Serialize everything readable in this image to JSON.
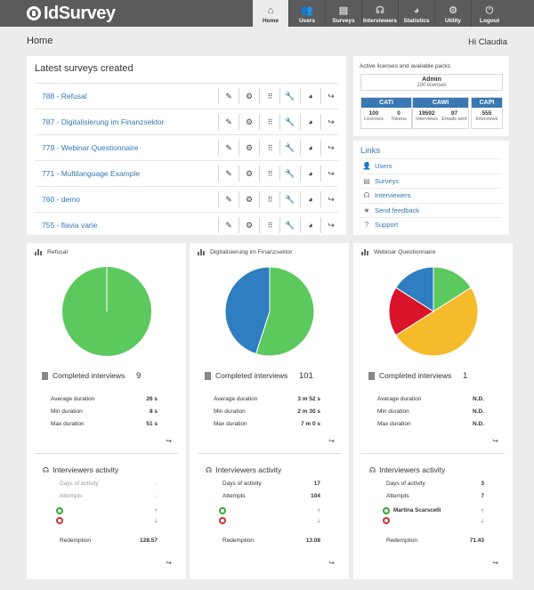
{
  "brand": {
    "name": "IdSurvey"
  },
  "nav": [
    {
      "label": "Home",
      "icon": "home-icon",
      "glyph": "⌂"
    },
    {
      "label": "Users",
      "icon": "users-icon",
      "glyph": "👥"
    },
    {
      "label": "Surveys",
      "icon": "surveys-icon",
      "glyph": "▤"
    },
    {
      "label": "Interviewers",
      "icon": "headset-icon",
      "glyph": "☊"
    },
    {
      "label": "Statistics",
      "icon": "pie-chart-icon",
      "glyph": "◕"
    },
    {
      "label": "Utility",
      "icon": "gear-icon",
      "glyph": "⚙"
    },
    {
      "label": "Logout",
      "icon": "power-icon",
      "glyph": "⏻"
    }
  ],
  "page": {
    "title": "Home",
    "greeting": "Hi Claudia"
  },
  "latest": {
    "title": "Latest surveys created",
    "surveys": [
      "788 - Refusal",
      "787 - Digitalisierung im Finanzsektor",
      "779 - Webinar Questionnaire",
      "771 - Multilanguage Example",
      "760 - demo",
      "755 - flavia varie"
    ],
    "actions": [
      {
        "name": "edit-icon",
        "glyph": "✎"
      },
      {
        "name": "settings-doc-icon",
        "glyph": "⚙"
      },
      {
        "name": "grid-icon",
        "glyph": "⠿"
      },
      {
        "name": "wrench-icon",
        "glyph": "🔧"
      },
      {
        "name": "pie-chart-icon",
        "glyph": "◕"
      },
      {
        "name": "share-icon",
        "glyph": "↪"
      }
    ]
  },
  "licenses": {
    "title": "Active licenses and available packs",
    "admin": {
      "name": "Admin",
      "sub": "100 licenses"
    },
    "boxes": [
      {
        "head": "CATI",
        "cells": [
          {
            "num": "100",
            "label": "Licenses"
          },
          {
            "num": "0",
            "label": "Tokens"
          }
        ]
      },
      {
        "head": "CAWI",
        "cells": [
          {
            "num": "19592",
            "label": "Interviews"
          },
          {
            "num": "97",
            "label": "Emails sent"
          }
        ]
      },
      {
        "head": "CAPI",
        "cells": [
          {
            "num": "555",
            "label": "Interviews"
          }
        ]
      }
    ]
  },
  "links": {
    "title": "Links",
    "items": [
      {
        "label": "Users",
        "icon": "users-icon",
        "glyph": "👤"
      },
      {
        "label": "Surveys",
        "icon": "document-icon",
        "glyph": "▤"
      },
      {
        "label": "Interviewers",
        "icon": "headset-icon",
        "glyph": "☊"
      },
      {
        "label": "Send feedback",
        "icon": "star-icon",
        "glyph": "★"
      },
      {
        "label": "Support",
        "icon": "question-icon",
        "glyph": "?"
      }
    ]
  },
  "stats": [
    {
      "title": "Refusal",
      "pie": [
        {
          "value": 1,
          "color": "#5cc95e"
        }
      ],
      "completed_label": "Completed interviews",
      "completed": "9",
      "metrics": [
        {
          "label": "Average duration",
          "value": "26 s"
        },
        {
          "label": "Min duration",
          "value": "8 s"
        },
        {
          "label": "Max duration",
          "value": "51 s"
        }
      ],
      "activity": {
        "title": "Interviewers activity",
        "days_label": "Days of activity",
        "days": "-",
        "attempts_label": "Attempts",
        "attempts": "-",
        "top": "",
        "bottom": "",
        "up_arrow": "↑",
        "down_arrow": "↓",
        "redemption_label": "Redemption",
        "redemption": "128.57",
        "muted": true
      }
    },
    {
      "title": "Digitalisierung im Finanzsektor",
      "pie": [
        {
          "value": 55,
          "color": "#5cc95e"
        },
        {
          "value": 45,
          "color": "#2f7ec1"
        }
      ],
      "completed_label": "Completed interviews",
      "completed": "101",
      "metrics": [
        {
          "label": "Average duration",
          "value": "3 m 52 s"
        },
        {
          "label": "Min duration",
          "value": "2 m 30 s"
        },
        {
          "label": "Max duration",
          "value": "7 m 0 s"
        }
      ],
      "activity": {
        "title": "Interviewers activity",
        "days_label": "Days of activity",
        "days": "17",
        "attempts_label": "Attempts",
        "attempts": "104",
        "top": "",
        "bottom": "",
        "up_arrow": "↑",
        "down_arrow": "↓",
        "redemption_label": "Redemption",
        "redemption": "13.08",
        "muted": false
      }
    },
    {
      "title": "Webinar Questionnaire",
      "pie": [
        {
          "value": 16,
          "color": "#5cc95e"
        },
        {
          "value": 50,
          "color": "#f6bb2b"
        },
        {
          "value": 18,
          "color": "#d9142a"
        },
        {
          "value": 16,
          "color": "#2f7ec1"
        }
      ],
      "completed_label": "Completed interviews",
      "completed": "1",
      "metrics": [
        {
          "label": "Average duration",
          "value": "N.D."
        },
        {
          "label": "Min duration",
          "value": "N.D."
        },
        {
          "label": "Max duration",
          "value": "N.D."
        }
      ],
      "activity": {
        "title": "Interviewers activity",
        "days_label": "Days of activity",
        "days": "3",
        "attempts_label": "Attempts",
        "attempts": "7",
        "top": "Martina Scarscelli",
        "bottom": "",
        "up_arrow": "↑",
        "down_arrow": "↓",
        "redemption_label": "Redemption",
        "redemption": "71.43",
        "muted": false
      }
    }
  ],
  "share_glyph": "↪"
}
